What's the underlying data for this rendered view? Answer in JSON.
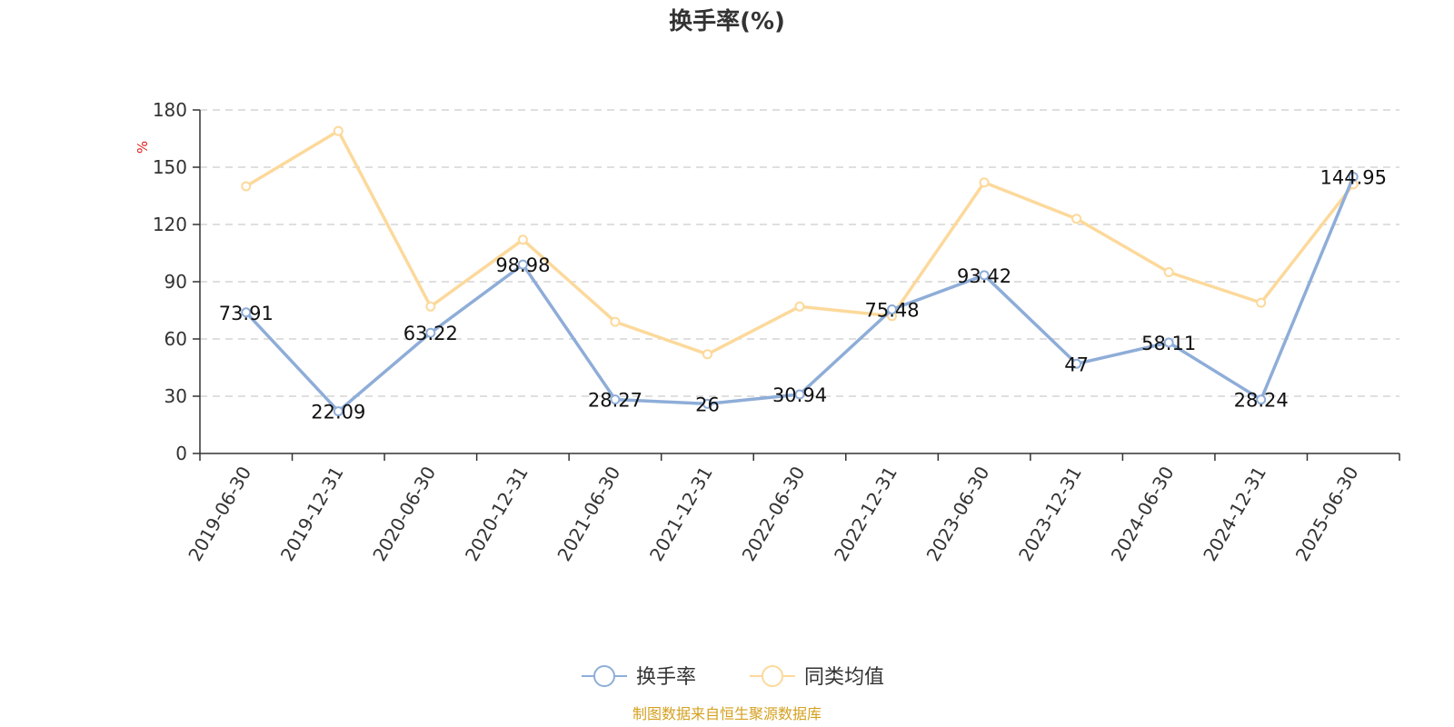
{
  "chart_data": {
    "type": "line",
    "title": "换手率(%)",
    "ylabel": "%",
    "categories": [
      "2019-06-30",
      "2019-12-31",
      "2020-06-30",
      "2020-12-31",
      "2021-06-30",
      "2021-12-31",
      "2022-06-30",
      "2022-12-31",
      "2023-06-30",
      "2023-12-31",
      "2024-06-30",
      "2024-12-31",
      "2025-06-30"
    ],
    "ylim": [
      0,
      180
    ],
    "yticks": [
      0,
      30,
      60,
      90,
      120,
      150,
      180
    ],
    "grid": true,
    "legend_position": "bottom-center",
    "series": [
      {
        "name": "换手率",
        "color": "#8eadd8",
        "show_labels": true,
        "values": [
          73.91,
          22.09,
          63.22,
          98.98,
          28.27,
          26,
          30.94,
          75.48,
          93.42,
          47,
          58.11,
          28.24,
          144.95
        ]
      },
      {
        "name": "同类均值",
        "color": "#fcd99b",
        "show_labels": false,
        "values": [
          140,
          169,
          77,
          112,
          69,
          52,
          77,
          72,
          142,
          123,
          95,
          79,
          141
        ]
      }
    ]
  },
  "source_text": "制图数据来自恒生聚源数据库",
  "colors": {
    "axis": "#333333",
    "grid": "#cccccc",
    "unit": "#e02020",
    "source": "#d4a020"
  }
}
